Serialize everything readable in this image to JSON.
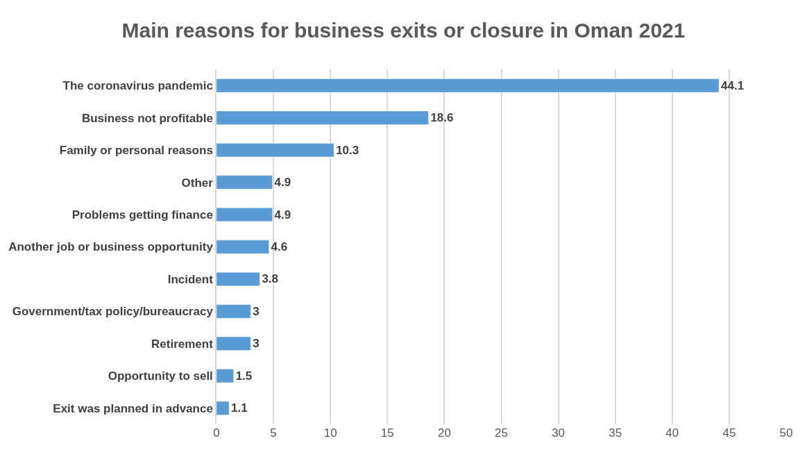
{
  "chart_data": {
    "type": "bar",
    "orientation": "horizontal",
    "title": "Main reasons for business exits or closure in Oman 2021",
    "categories": [
      "The coronavirus pandemic",
      "Business not profitable",
      "Family or personal reasons",
      "Other",
      "Problems getting finance",
      "Another job or business opportunity",
      "Incident",
      "Government/tax policy/bureaucracy",
      "Retirement",
      "Opportunity to sell",
      "Exit was planned in advance"
    ],
    "values": [
      44.1,
      18.6,
      10.3,
      4.9,
      4.9,
      4.6,
      3.8,
      3,
      3,
      1.5,
      1.1
    ],
    "color": "#5b9bd5",
    "xlim": [
      0,
      50
    ],
    "xticks": [
      0,
      5,
      10,
      15,
      20,
      25,
      30,
      35,
      40,
      45,
      50
    ],
    "grid": "x",
    "data_labels": true
  }
}
